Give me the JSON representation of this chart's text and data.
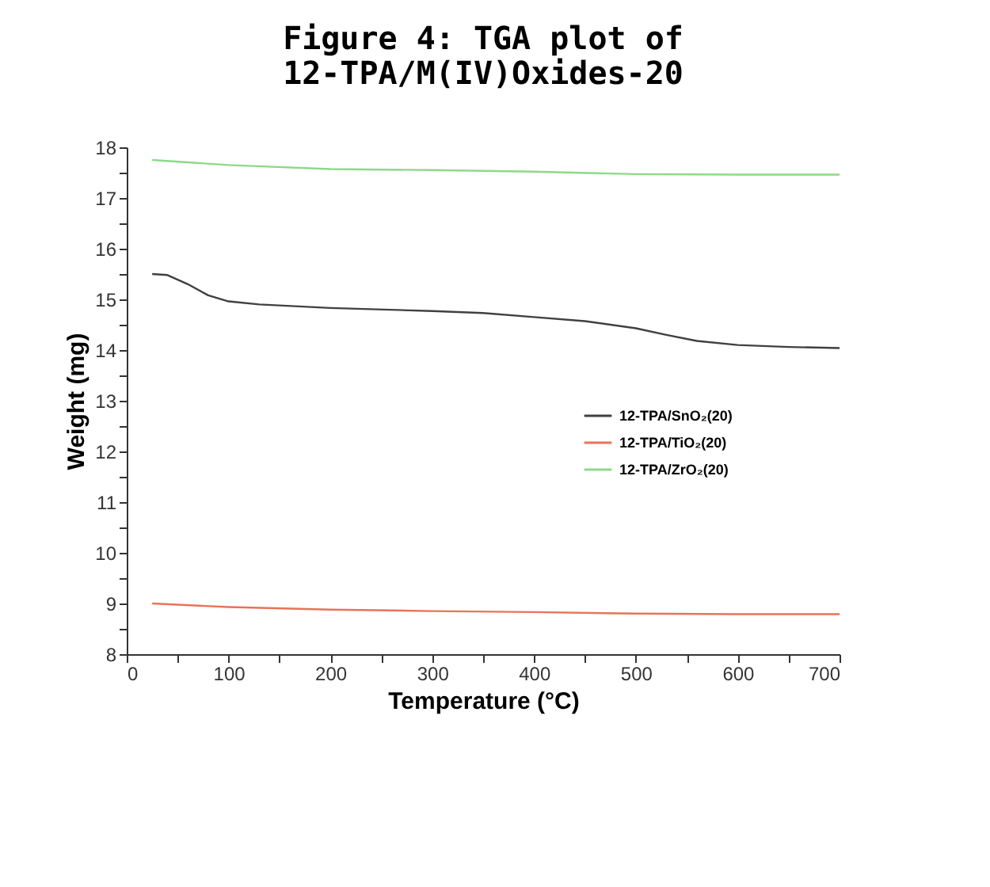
{
  "chart_data": {
    "type": "line",
    "title": [
      "Figure 4: TGA plot of",
      "12-TPA/M(IV)Oxides-20"
    ],
    "xlabel": "Temperature (°C)",
    "ylabel": "Weight (mg)",
    "xlim": [
      0,
      700
    ],
    "ylim": [
      8,
      18
    ],
    "xticks": [
      0,
      {
        "value": 50,
        "label": null
      },
      100,
      {
        "value": 150,
        "label": null
      },
      200,
      {
        "value": 250,
        "label": null
      },
      300,
      {
        "value": 350,
        "label": null
      },
      400,
      {
        "value": 450,
        "label": null
      },
      500,
      {
        "value": 550,
        "label": null
      },
      600,
      {
        "value": 650,
        "label": null
      },
      700
    ],
    "yticks": [
      8,
      {
        "value": 8.5,
        "label": null
      },
      9,
      {
        "value": 9.5,
        "label": null
      },
      10,
      {
        "value": 10.5,
        "label": null
      },
      11,
      {
        "value": 11.5,
        "label": null
      },
      12,
      {
        "value": 12.5,
        "label": null
      },
      13,
      {
        "value": 13.5,
        "label": null
      },
      14,
      {
        "value": 14.5,
        "label": null
      },
      15,
      {
        "value": 15.5,
        "label": null
      },
      16,
      {
        "value": 16.5,
        "label": null
      },
      17,
      {
        "value": 17.5,
        "label": null
      },
      18
    ],
    "grid": false,
    "legend": "right",
    "marker": "none",
    "line_style": "solid",
    "series": [
      {
        "name": "12-TPA/SnO₂(20)",
        "color": "#404040",
        "x": [
          25,
          40,
          60,
          80,
          100,
          130,
          200,
          300,
          350,
          400,
          450,
          500,
          530,
          560,
          600,
          650,
          700
        ],
        "values": [
          15.5,
          15.48,
          15.3,
          15.08,
          14.96,
          14.9,
          14.83,
          14.77,
          14.73,
          14.65,
          14.57,
          14.43,
          14.3,
          14.18,
          14.1,
          14.06,
          14.04
        ]
      },
      {
        "name": "12-TPA/TiO₂(20)",
        "color": "#e8735a",
        "x": [
          25,
          100,
          200,
          300,
          400,
          500,
          600,
          700
        ],
        "values": [
          9.0,
          8.93,
          8.88,
          8.85,
          8.83,
          8.8,
          8.79,
          8.79
        ]
      },
      {
        "name": "12-TPA/ZrO₂(20)",
        "color": "#8fd88a",
        "x": [
          25,
          100,
          200,
          300,
          400,
          500,
          600,
          700
        ],
        "values": [
          17.75,
          17.65,
          17.57,
          17.55,
          17.52,
          17.47,
          17.46,
          17.46
        ]
      }
    ]
  }
}
